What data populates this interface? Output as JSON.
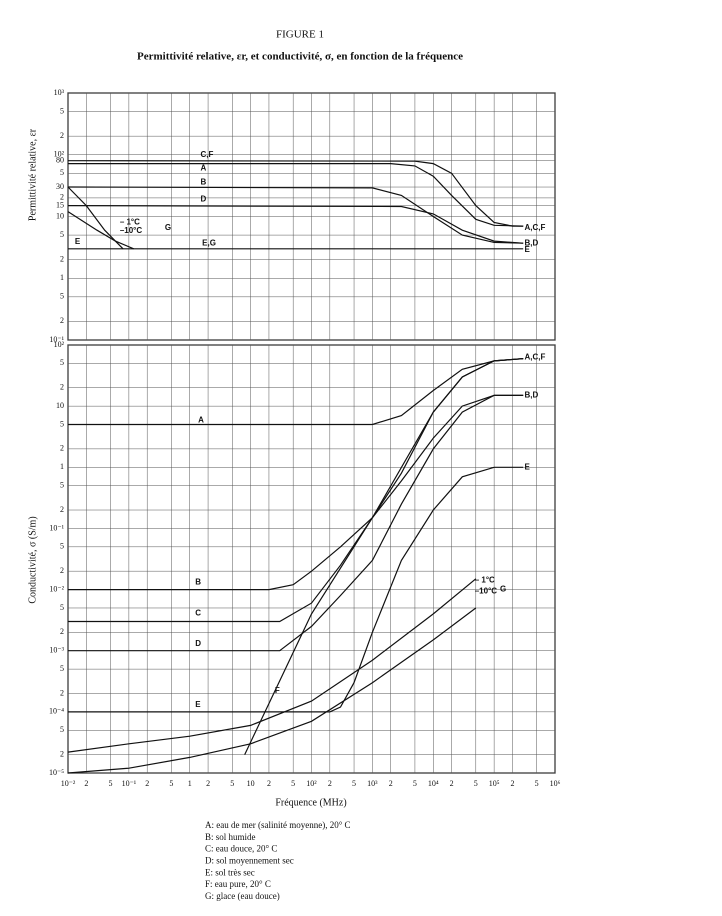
{
  "chart_data": [
    {
      "type": "line",
      "title": "FIGURE 1",
      "subtitle": "Permittivité relative, εr, et conductivité, σ, en fonction de la fréquence",
      "ylabel": "Permittivité relative, εr",
      "log_x": true,
      "log_y": true,
      "grid": true,
      "color": "#111",
      "ylim": [
        0.1,
        1000
      ],
      "yticks": [
        {
          "value": 1000,
          "label": "10³"
        },
        {
          "value": 500,
          "label": "5"
        },
        {
          "value": 200,
          "label": "2"
        },
        {
          "value": 100,
          "label": "10²"
        },
        80,
        {
          "value": 50,
          "label": "5"
        },
        30,
        {
          "value": 20,
          "label": "2"
        },
        15,
        10,
        5,
        2,
        1,
        {
          "value": 0.5,
          "label": "5"
        },
        {
          "value": 0.2,
          "label": "2"
        },
        {
          "value": 0.1,
          "label": "10⁻¹"
        }
      ],
      "series": [
        {
          "x": [
            0.01,
            5000,
            10000,
            20000,
            50000,
            100000,
            200000,
            300000
          ],
          "values": [
            80,
            79,
            72,
            50,
            15,
            8,
            7,
            7
          ]
        },
        {
          "x": [
            0.01,
            2000,
            5000,
            10000,
            20000,
            50000,
            100000,
            300000
          ],
          "values": [
            72,
            72,
            66,
            45,
            22,
            9,
            7.2,
            7
          ]
        },
        {
          "x": [
            0.01,
            1000,
            3000,
            10000,
            30000,
            100000,
            300000
          ],
          "values": [
            30,
            29,
            22,
            10,
            5,
            3.8,
            3.7
          ]
        },
        {
          "x": [
            0.01,
            3000,
            10000,
            30000,
            100000,
            300000
          ],
          "values": [
            15,
            14.5,
            11,
            6,
            4,
            3.7
          ]
        },
        {
          "x": [
            0.01,
            300000
          ],
          "values": [
            3,
            3
          ]
        },
        {
          "x": [
            0.01,
            0.02,
            0.04,
            0.08
          ],
          "values": [
            30,
            15,
            6,
            3
          ]
        },
        {
          "x": [
            0.01,
            0.03,
            0.06,
            0.12
          ],
          "values": [
            12,
            6,
            4,
            3
          ]
        }
      ],
      "annotations": [
        {
          "text": "C,F",
          "x": 1.5,
          "y": 100
        },
        {
          "text": "A",
          "x": 1.5,
          "y": 60
        },
        {
          "text": "B",
          "x": 1.5,
          "y": 36
        },
        {
          "text": "D",
          "x": 1.5,
          "y": 19
        },
        {
          "text": "E,G",
          "x": 1.6,
          "y": 3.7
        },
        {
          "text": "E",
          "x": 0.013,
          "y": 3.9
        },
        {
          "text": "A,C,F",
          "x": 316000,
          "y": 6.5
        },
        {
          "text": "B,D",
          "x": 316000,
          "y": 3.7
        },
        {
          "text": "E",
          "x": 316000,
          "y": 2.9
        },
        {
          "text": "– 1°C",
          "x": 0.071,
          "y": 8.1
        },
        {
          "text": "–10°C",
          "x": 0.071,
          "y": 5.8
        },
        {
          "text": "G",
          "x": 0.39,
          "y": 6.5
        }
      ]
    },
    {
      "type": "line",
      "ylabel": "Conductivité, σ (S/m)",
      "xlabel": "Fréquence (MHz)",
      "log_x": true,
      "log_y": true,
      "grid": true,
      "color": "#111",
      "xlim": [
        0.01,
        1000000
      ],
      "xticks": [
        {
          "value": 0.01,
          "label": "10⁻²"
        },
        {
          "value": 0.02,
          "label": "2"
        },
        {
          "value": 0.05,
          "label": "5"
        },
        {
          "value": 0.1,
          "label": "10⁻¹"
        },
        {
          "value": 0.2,
          "label": "2"
        },
        {
          "value": 0.5,
          "label": "5"
        },
        1,
        2,
        5,
        10,
        {
          "value": 20,
          "label": "2"
        },
        {
          "value": 50,
          "label": "5"
        },
        {
          "value": 100,
          "label": "10²"
        },
        {
          "value": 200,
          "label": "2"
        },
        {
          "value": 500,
          "label": "5"
        },
        {
          "value": 1000,
          "label": "10³"
        },
        {
          "value": 2000,
          "label": "2"
        },
        {
          "value": 5000,
          "label": "5"
        },
        {
          "value": 10000,
          "label": "10⁴"
        },
        {
          "value": 20000,
          "label": "2"
        },
        {
          "value": 50000,
          "label": "5"
        },
        {
          "value": 100000,
          "label": "10⁵"
        },
        {
          "value": 200000,
          "label": "2"
        },
        {
          "value": 500000,
          "label": "5"
        },
        {
          "value": 1000000,
          "label": "10⁶"
        }
      ],
      "ylim": [
        1e-05,
        100
      ],
      "yticks": [
        {
          "value": 100,
          "label": "10²"
        },
        {
          "value": 50,
          "label": "5"
        },
        {
          "value": 20,
          "label": "2"
        },
        10,
        5,
        2,
        1,
        {
          "value": 0.5,
          "label": "5"
        },
        {
          "value": 0.2,
          "label": "2"
        },
        {
          "value": 0.1,
          "label": "10⁻¹"
        },
        {
          "value": 0.05,
          "label": "5"
        },
        {
          "value": 0.02,
          "label": "2"
        },
        {
          "value": 0.01,
          "label": "10⁻²"
        },
        {
          "value": 0.005,
          "label": "5"
        },
        {
          "value": 0.002,
          "label": "2"
        },
        {
          "value": 0.001,
          "label": "10⁻³"
        },
        {
          "value": 0.0005,
          "label": "5"
        },
        {
          "value": 0.0002,
          "label": "2"
        },
        {
          "value": 0.0001,
          "label": "10⁻⁴"
        },
        {
          "value": 5e-05,
          "label": "5"
        },
        {
          "value": 2e-05,
          "label": "2"
        },
        {
          "value": 1e-05,
          "label": "10⁻⁵"
        }
      ],
      "series": [
        {
          "x": [
            0.01,
            1000,
            3000,
            10000,
            30000,
            100000,
            300000
          ],
          "values": [
            5,
            5,
            7,
            18,
            40,
            55,
            60
          ]
        },
        {
          "x": [
            0.01,
            20,
            50,
            100,
            300,
            1000,
            3000,
            10000,
            30000,
            100000,
            300000
          ],
          "values": [
            0.01,
            0.01,
            0.012,
            0.02,
            0.05,
            0.15,
            0.6,
            3,
            10,
            15,
            15
          ]
        },
        {
          "x": [
            0.01,
            30,
            100,
            300,
            1000,
            3000,
            10000,
            30000,
            100000,
            300000
          ],
          "values": [
            0.003,
            0.003,
            0.006,
            0.025,
            0.15,
            0.8,
            8,
            30,
            55,
            60
          ]
        },
        {
          "x": [
            0.01,
            30,
            100,
            300,
            1000,
            3000,
            10000,
            30000,
            100000,
            300000
          ],
          "values": [
            0.001,
            0.001,
            0.0025,
            0.008,
            0.03,
            0.25,
            2,
            8,
            15,
            15
          ]
        },
        {
          "x": [
            0.01,
            200,
            300,
            500,
            1000,
            3000,
            10000,
            30000,
            100000,
            300000
          ],
          "values": [
            0.0001,
            0.0001,
            0.00012,
            0.0003,
            0.002,
            0.03,
            0.2,
            0.7,
            1,
            1
          ]
        },
        {
          "x": [
            8,
            100,
            1000,
            10000,
            30000,
            100000,
            300000
          ],
          "values": [
            2e-05,
            0.004,
            0.15,
            8,
            30,
            55,
            60
          ]
        },
        {
          "x": [
            0.01,
            0.1,
            1,
            10,
            100,
            1000,
            10000,
            50000
          ],
          "values": [
            2.2e-05,
            3e-05,
            4e-05,
            6e-05,
            0.00015,
            0.0007,
            0.004,
            0.015
          ]
        },
        {
          "x": [
            0.01,
            0.1,
            1,
            10,
            100,
            1000,
            10000,
            50000
          ],
          "values": [
            1e-05,
            1.2e-05,
            1.8e-05,
            3e-05,
            7e-05,
            0.0003,
            0.0015,
            0.005
          ]
        }
      ],
      "annotations": [
        {
          "text": "A,C,F",
          "x": 316000,
          "y": 63
        },
        {
          "text": "B,D",
          "x": 316000,
          "y": 15
        },
        {
          "text": "E",
          "x": 316000,
          "y": 1
        },
        {
          "text": "A",
          "x": 1.37,
          "y": 5.9
        },
        {
          "text": "B",
          "x": 1.23,
          "y": 0.013
        },
        {
          "text": "C",
          "x": 1.23,
          "y": 0.0041
        },
        {
          "text": "D",
          "x": 1.23,
          "y": 0.0013
        },
        {
          "text": "E",
          "x": 1.23,
          "y": 0.00013
        },
        {
          "text": "F",
          "x": 25,
          "y": 0.00022
        },
        {
          "text": "– 1°C",
          "x": 48000,
          "y": 0.014
        },
        {
          "text": "–10°C",
          "x": 48000,
          "y": 0.0094
        },
        {
          "text": "G",
          "x": 125000,
          "y": 0.01
        }
      ],
      "notes": [
        "A:  eau de mer (salinité moyenne), 20° C",
        "B:  sol humide",
        "C:  eau douce, 20° C",
        "D:  sol moyennement sec",
        "E:  sol très sec",
        "F:  eau pure, 20° C",
        "G:  glace (eau douce)"
      ]
    }
  ]
}
